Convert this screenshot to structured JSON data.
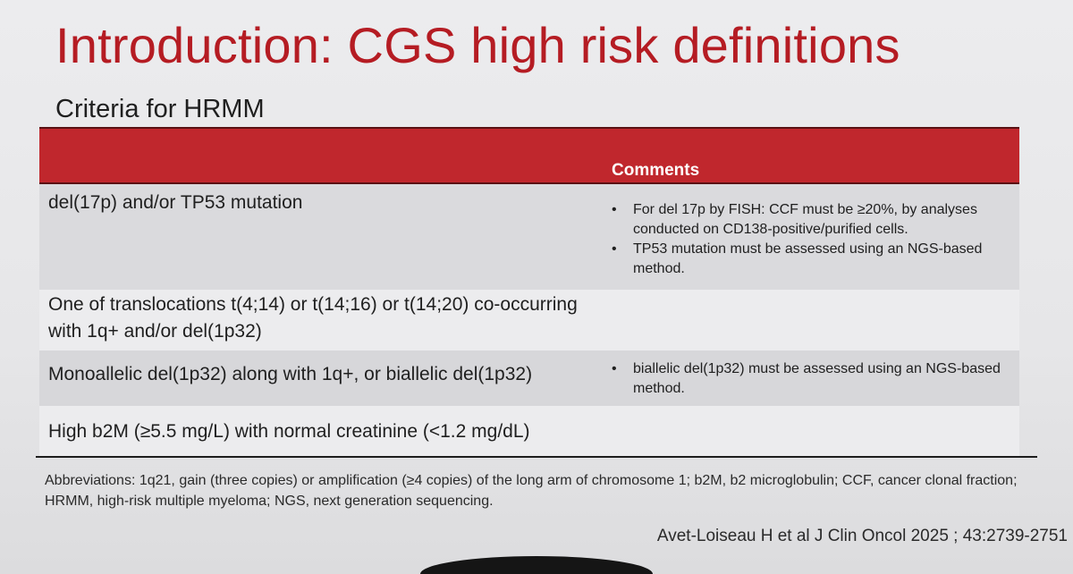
{
  "slide": {
    "title": "Introduction: CGS high risk definitions",
    "subtitle": "Criteria for HRMM"
  },
  "colors": {
    "title": "#b51c23",
    "header_band": "#c0272d"
  },
  "table": {
    "header_comments": "Comments",
    "rows": [
      {
        "criterion": "del(17p) and/or TP53 mutation",
        "comments": [
          "For del 17p by FISH: CCF must be ≥20%, by analyses conducted on CD138-positive/purified cells.",
          "TP53 mutation must be assessed using an NGS-based method."
        ]
      },
      {
        "criterion": "One of translocations t(4;14) or t(14;16) or t(14;20) co-occurring with 1q+ and/or del(1p32)",
        "comments": []
      },
      {
        "criterion": "Monoallelic del(1p32) along with 1q+, or biallelic del(1p32)",
        "comments": [
          "biallelic del(1p32) must be assessed using an NGS-based method."
        ]
      },
      {
        "criterion": "High b2M (≥5.5 mg/L) with normal creatinine (<1.2 mg/dL)",
        "comments": []
      }
    ]
  },
  "footer": {
    "abbreviations": "Abbreviations: 1q21, gain (three copies) or amplification (≥4 copies) of the long arm of chromosome 1; b2M, b2 microglobulin; CCF, cancer clonal fraction; HRMM, high-risk multiple myeloma; NGS, next generation sequencing.",
    "citation": "Avet-Loiseau H et al J Clin Oncol 2025 ; 43:2739-2751"
  },
  "icons": {
    "bullet": "•"
  }
}
